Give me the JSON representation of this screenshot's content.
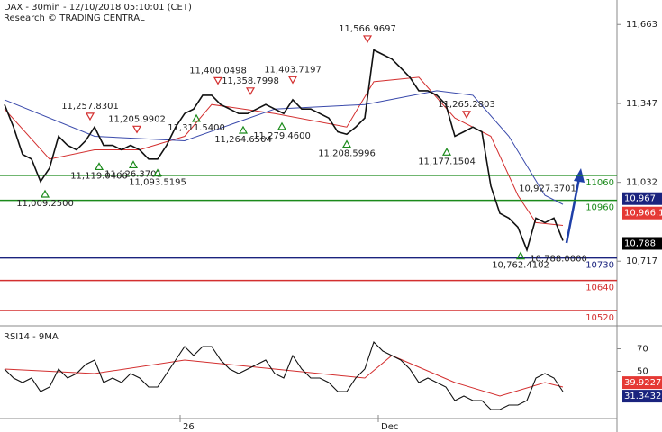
{
  "chart_data": {
    "type": "line",
    "title": "DAX - 30min - 12/10/2018 05:10:01 (CET)",
    "subtitle": "Research © TRADING CENTRAL",
    "xlim": [
      -0.5,
      68
    ],
    "xticks": [
      {
        "value": 19.5,
        "label": "26"
      },
      {
        "value": 41.5,
        "label": "Dec"
      }
    ],
    "ylim": [
      10466,
      11761
    ],
    "yticks": [
      {
        "value": 11663,
        "label": "11,663"
      },
      {
        "value": 11347,
        "label": "11,347"
      },
      {
        "value": 11032,
        "label": "11,032"
      },
      {
        "value": 10717,
        "label": "10,717"
      }
    ],
    "series": [
      {
        "color": "#111111",
        "values": [
          11343,
          11253,
          11144,
          11125,
          11035,
          11089,
          11216,
          11180,
          11162,
          11198,
          11253,
          11180,
          11180,
          11162,
          11180,
          11162,
          11125,
          11125,
          11180,
          11253,
          11307,
          11325,
          11380,
          11380,
          11343,
          11325,
          11307,
          11307,
          11325,
          11343,
          11325,
          11307,
          11362,
          11325,
          11325,
          11307,
          11289,
          11234,
          11224,
          11253,
          11289,
          11561,
          11543,
          11525,
          11489,
          11452,
          11398,
          11398,
          11380,
          11343,
          11216,
          11234,
          11253,
          11234,
          11017,
          10908,
          10889,
          10853,
          10762,
          10889,
          10871,
          10889,
          10799
        ]
      }
    ],
    "ma_lines": [
      {
        "color": "#d32f2f",
        "x": [
          0,
          5,
          10,
          15,
          20,
          23,
          30,
          38,
          41,
          46,
          50,
          54,
          57,
          59,
          62
        ],
        "values": [
          11325,
          11125,
          11162,
          11162,
          11216,
          11343,
          11307,
          11253,
          11434,
          11452,
          11289,
          11216,
          10980,
          10871,
          10860
        ]
      },
      {
        "color": "#3949ab",
        "x": [
          0,
          10,
          20,
          30,
          40,
          48,
          52,
          56,
          60,
          62
        ],
        "values": [
          11362,
          11216,
          11198,
          11325,
          11343,
          11398,
          11380,
          11216,
          10980,
          10944
        ]
      }
    ],
    "levels": [
      {
        "value": 11060,
        "color": "#1b8a1b"
      },
      {
        "value": 10960,
        "color": "#1b8a1b"
      },
      {
        "value": 10730,
        "color": "#1a237e"
      },
      {
        "value": 10640,
        "color": "#d32f2f"
      },
      {
        "value": 10520,
        "color": "#d32f2f"
      }
    ],
    "price_boxes": [
      {
        "value": 10967,
        "label": "10,967",
        "color": "#1a237e"
      },
      {
        "value": 10966.1,
        "label": "10,966.1",
        "color": "#e53935"
      },
      {
        "value": 10788,
        "label": "10,788",
        "color": "#000000"
      }
    ],
    "annotations": [
      {
        "x": 9.5,
        "value": 11257.8301,
        "label": "11,257.8301",
        "dir": "down",
        "marker": true
      },
      {
        "x": 10.5,
        "value": 11119.04,
        "label": "11,119.0400",
        "dir": "up",
        "marker": true
      },
      {
        "x": 14.3,
        "value": 11126.3701,
        "label": "11,126.3701",
        "dir": "up",
        "marker": true
      },
      {
        "x": 14.7,
        "value": 11205.9902,
        "label": "11,205.9902",
        "dir": "down",
        "marker": true
      },
      {
        "x": 17,
        "value": 11093.5195,
        "label": "11,093.5195",
        "dir": "up",
        "marker": true
      },
      {
        "x": 4.5,
        "value": 11009.25,
        "label": "11,009.2500",
        "dir": "up",
        "marker": true
      },
      {
        "x": 23.7,
        "value": 11400.0498,
        "label": "11,400.0498",
        "dir": "down",
        "marker": true
      },
      {
        "x": 27.3,
        "value": 11358.7998,
        "label": "11,358.7998",
        "dir": "down",
        "marker": true
      },
      {
        "x": 21.3,
        "value": 11311.54,
        "label": "11,311.5400",
        "dir": "up",
        "marker": true
      },
      {
        "x": 26.5,
        "value": 11264.6504,
        "label": "11,264.6504",
        "dir": "up",
        "marker": true
      },
      {
        "x": 32,
        "value": 11403.7197,
        "label": "11,403.7197",
        "dir": "down",
        "marker": true
      },
      {
        "x": 30.8,
        "value": 11279.46,
        "label": "11,279.4600",
        "dir": "up",
        "marker": true
      },
      {
        "x": 38,
        "value": 11208.5996,
        "label": "11,208.5996",
        "dir": "up",
        "marker": true
      },
      {
        "x": 40.3,
        "value": 11566.9697,
        "label": "11,566.9697",
        "dir": "down",
        "marker": true
      },
      {
        "x": 51.3,
        "value": 11265.2803,
        "label": "11,265.2803",
        "dir": "down",
        "marker": true
      },
      {
        "x": 49.1,
        "value": 11177.1504,
        "label": "11,177.1504",
        "dir": "up",
        "marker": true
      },
      {
        "x": 57.3,
        "value": 10762.4102,
        "label": "10,762.4102",
        "dir": "up",
        "marker": true
      },
      {
        "x": 60.3,
        "value": 10927.3701,
        "label": "10,927.3701",
        "dir": "down",
        "marker": false
      },
      {
        "x": 61.5,
        "value": 10788,
        "label": "10,788.0000",
        "dir": "up",
        "marker": false
      }
    ],
    "rsi": {
      "title": "RSI14 - 9MA",
      "ylim": [
        8,
        88
      ],
      "yticks": [
        50,
        70
      ],
      "color": "#111111",
      "values": [
        52,
        44,
        40,
        44,
        32,
        36,
        52,
        44,
        48,
        56,
        60,
        40,
        44,
        40,
        48,
        44,
        36,
        36,
        48,
        60,
        72,
        64,
        72,
        72,
        60,
        52,
        48,
        52,
        56,
        60,
        48,
        44,
        64,
        52,
        44,
        44,
        40,
        32,
        32,
        44,
        52,
        76,
        68,
        64,
        60,
        52,
        40,
        44,
        40,
        36,
        24,
        28,
        24,
        24,
        16,
        16,
        20,
        20,
        24,
        44,
        48,
        44,
        32
      ],
      "ma": {
        "color": "#d32f2f",
        "x": [
          0,
          10,
          20,
          30,
          40,
          43,
          50,
          55,
          60,
          62
        ],
        "values": [
          52,
          48,
          60,
          52,
          44,
          64,
          40,
          28,
          40,
          36
        ]
      },
      "boxes": [
        {
          "value": 39.9227,
          "label": "39.9227",
          "color": "#e53935"
        },
        {
          "value": 31.3432,
          "label": "31.3432",
          "color": "#1a237e"
        }
      ]
    }
  }
}
